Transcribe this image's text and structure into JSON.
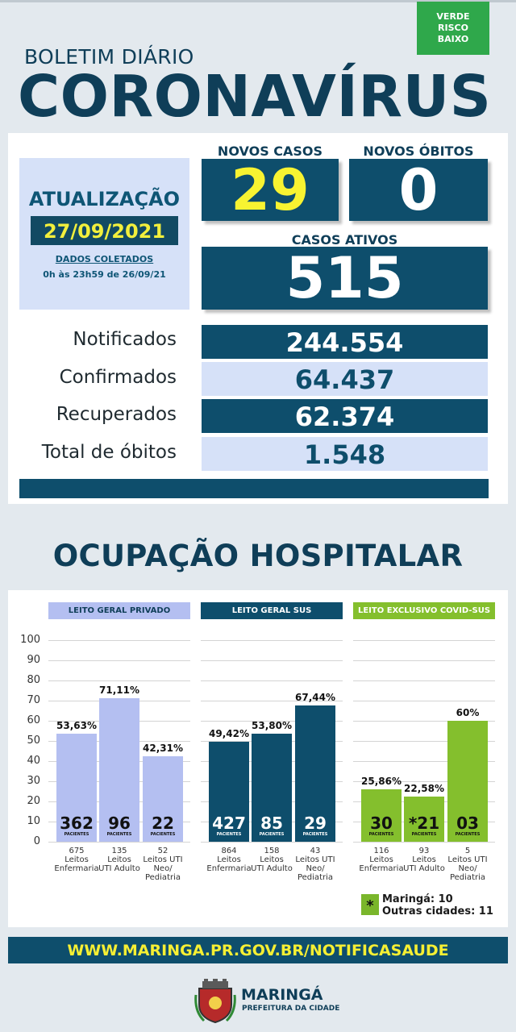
{
  "risk_badge": {
    "lines": [
      "VERDE",
      "RISCO",
      "BAIXO"
    ]
  },
  "header": {
    "bulletin": "BOLETIM DIÁRIO",
    "title": "CORONAVÍRUS"
  },
  "update": {
    "title": "ATUALIZAÇÃO",
    "date": "27/09/2021",
    "collected_label": "DADOS COLETADOS",
    "collected_range": "0h às 23h59 de 26/09/21"
  },
  "stats": {
    "new_cases_label": "NOVOS CASOS",
    "new_cases": "29",
    "new_deaths_label": "NOVOS ÓBITOS",
    "new_deaths": "0",
    "active_label": "CASOS ATIVOS",
    "active": "515"
  },
  "totals": [
    {
      "label": "Notificados",
      "value": "244.554"
    },
    {
      "label": "Confirmados",
      "value": "64.437"
    },
    {
      "label": "Recuperados",
      "value": "62.374"
    },
    {
      "label": "Total de óbitos",
      "value": "1.548"
    }
  ],
  "hospital_title": "OCUPAÇÃO HOSPITALAR",
  "colors": {
    "private": "#b4bff1",
    "sus": "#0e4e6c",
    "covid": "#84bf2d",
    "accent_yellow": "#f8f331"
  },
  "chart_data": {
    "type": "bar",
    "ylim": [
      0,
      100
    ],
    "yticks": [
      "100",
      "90",
      "80",
      "70",
      "60",
      "50",
      "40",
      "30",
      "20",
      "10",
      "0"
    ],
    "groups": [
      {
        "name": "LEITO GERAL PRIVADO",
        "bars": [
          {
            "pct": 53.63,
            "pct_label": "53,63%",
            "patients": "362",
            "beds": "675",
            "category": [
              "Leitos",
              "Enfermaria"
            ]
          },
          {
            "pct": 71.11,
            "pct_label": "71,11%",
            "patients": "96",
            "beds": "135",
            "category": [
              "Leitos",
              "UTI Adulto"
            ]
          },
          {
            "pct": 42.31,
            "pct_label": "42,31%",
            "patients": "22",
            "beds": "52",
            "category": [
              "Leitos UTI",
              "Neo/",
              "Pediatria"
            ]
          }
        ]
      },
      {
        "name": "LEITO GERAL SUS",
        "bars": [
          {
            "pct": 49.42,
            "pct_label": "49,42%",
            "patients": "427",
            "beds": "864",
            "category": [
              "Leitos",
              "Enfermaria"
            ]
          },
          {
            "pct": 53.8,
            "pct_label": "53,80%",
            "patients": "85",
            "beds": "158",
            "category": [
              "Leitos",
              "UTI Adulto"
            ]
          },
          {
            "pct": 67.44,
            "pct_label": "67,44%",
            "patients": "29",
            "beds": "43",
            "category": [
              "Leitos UTI",
              "Neo/",
              "Pediatria"
            ]
          }
        ]
      },
      {
        "name": "LEITO EXCLUSIVO COVID-SUS",
        "bars": [
          {
            "pct": 25.86,
            "pct_label": "25,86%",
            "patients": "30",
            "beds": "116",
            "category": [
              "Leitos",
              "Enfermaria"
            ]
          },
          {
            "pct": 22.58,
            "pct_label": "22,58%",
            "patients": "*21",
            "beds": "93",
            "category": [
              "Leitos",
              "UTI Adulto"
            ]
          },
          {
            "pct": 60,
            "pct_label": "60%",
            "patients": "03",
            "beds": "5",
            "category": [
              "Leitos UTI",
              "Neo/",
              "Pediatria"
            ]
          }
        ]
      }
    ],
    "patients_unit": "PACIENTES"
  },
  "legend": {
    "marker": "*",
    "line1": "Maringá: 10",
    "line2": "Outras cidades: 11"
  },
  "footer": {
    "url": "WWW.MARINGA.PR.GOV.BR/NOTIFICASAUDE",
    "logo_name": "MARINGÁ",
    "logo_sub": "PREFEITURA DA CIDADE"
  }
}
